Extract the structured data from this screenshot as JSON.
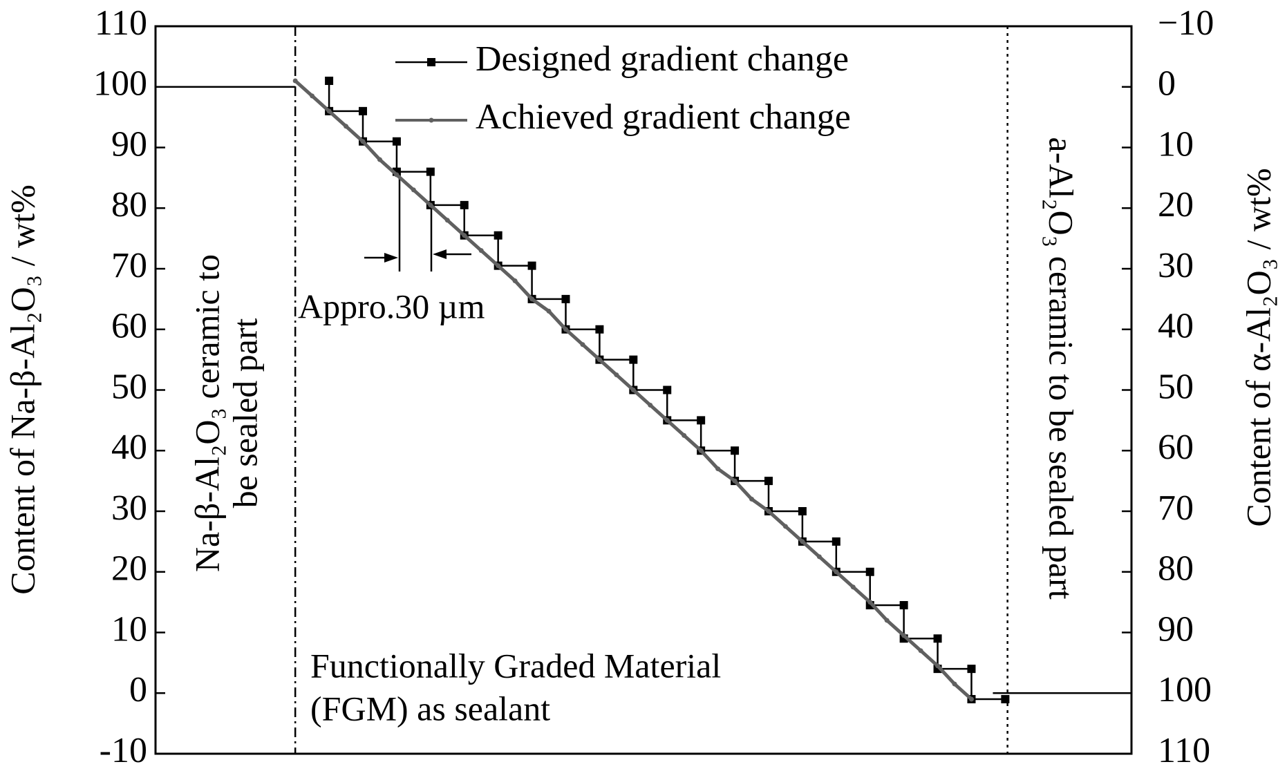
{
  "chart_data": {
    "type": "line",
    "ylabel": "Content of Na-β-Al₂O₃ / wt%",
    "y2label": "Content of α-Al₂O₃ / wt%",
    "xlim": [
      -124,
      742
    ],
    "ylim": [
      -10,
      110
    ],
    "yticks": [
      -10,
      0,
      10,
      20,
      30,
      40,
      50,
      60,
      70,
      80,
      90,
      100,
      110
    ],
    "y2lim": [
      110,
      -10
    ],
    "y2ticks": [
      {
        "value": -10,
        "label": "−10"
      },
      0,
      10,
      20,
      30,
      40,
      50,
      60,
      70,
      80,
      90,
      100,
      110
    ],
    "legend": "top",
    "series": [
      {
        "name": "Designed gradient change",
        "color": "#000000",
        "marker": "square",
        "x": [
          30,
          30,
          60,
          60,
          90,
          90,
          120,
          120,
          150,
          150,
          180,
          180,
          210,
          210,
          240,
          240,
          270,
          270,
          300,
          300,
          330,
          330,
          360,
          360,
          390,
          390,
          420,
          420,
          450,
          450,
          480,
          480,
          510,
          510,
          540,
          540,
          570,
          570,
          600,
          600,
          630
        ],
        "values": [
          101,
          96,
          96,
          91,
          91,
          86,
          86,
          80.5,
          80.5,
          75.5,
          75.5,
          70.5,
          70.5,
          65,
          65,
          60,
          60,
          55,
          55,
          50,
          50,
          45,
          45,
          40,
          40,
          35,
          35,
          30,
          30,
          25,
          25,
          20,
          20,
          14.5,
          14.5,
          9,
          9,
          4,
          4,
          -1,
          -1
        ]
      },
      {
        "name": "Achieved gradient change",
        "color": "#606060",
        "marker": "circle",
        "x": [
          0,
          15,
          30,
          45,
          60,
          75,
          90,
          105,
          120,
          135,
          150,
          165,
          180,
          195,
          210,
          225,
          240,
          255,
          270,
          285,
          300,
          315,
          330,
          345,
          360,
          375,
          390,
          405,
          420,
          435,
          450,
          465,
          480,
          495,
          510,
          525,
          540,
          555,
          570,
          585,
          600
        ],
        "values": [
          101,
          98.5,
          96,
          93.5,
          91,
          88,
          85.5,
          83,
          80.5,
          78,
          75.5,
          73,
          70.5,
          68,
          65,
          63,
          60,
          57.5,
          55,
          52.5,
          50,
          47.5,
          45,
          42.5,
          40,
          37,
          35,
          32,
          30,
          27.5,
          25,
          22.5,
          20,
          17.5,
          15,
          12,
          9.5,
          7,
          4.5,
          1.5,
          -1
        ]
      },
      {
        "color": "#000000",
        "x": [
          -124,
          0
        ],
        "values": [
          100,
          100
        ]
      },
      {
        "color": "#000000",
        "x": [
          619,
          742
        ],
        "values": [
          0,
          0
        ]
      }
    ],
    "reference_lines": [
      {
        "x": 0,
        "style": "dash-dot"
      },
      {
        "x": 632,
        "style": "dotted"
      }
    ],
    "annotations": {
      "left_region": [
        "Na-β-Al₂O₃ ceramic to",
        "be sealed part"
      ],
      "right_region": "a-Al₂O₃ ceramic to be sealed part",
      "middle_region": [
        "Functionally Graded Material",
        "(FGM) as sealant"
      ],
      "step_width": "Appro.30 µm"
    }
  }
}
